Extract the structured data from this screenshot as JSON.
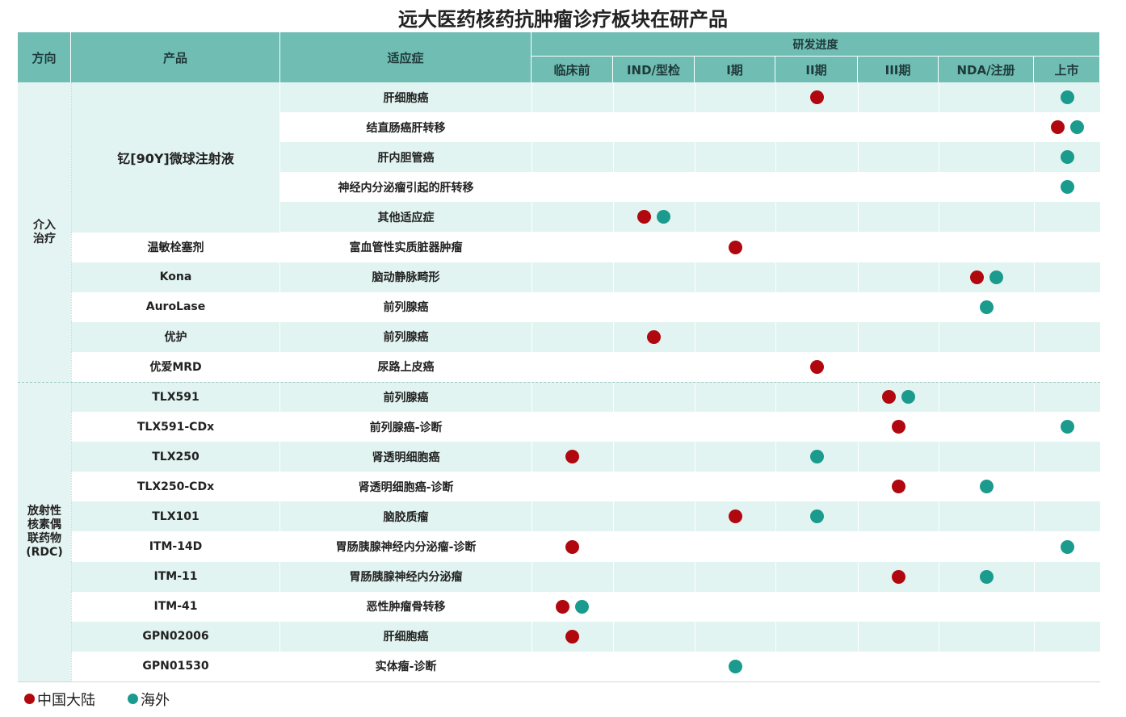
{
  "title": "远大医药核药抗肿瘤诊疗板块在研产品",
  "header": {
    "direction": "方向",
    "product": "产品",
    "indication": "适应症",
    "progress": "研发进度",
    "stages": [
      "临床前",
      "IND/型检",
      "I期",
      "II期",
      "III期",
      "NDA/注册",
      "上市"
    ]
  },
  "groups": [
    {
      "label": "介入\n治疗",
      "products": [
        {
          "name": "钇[90Y]微球注射液",
          "indications": [
            {
              "name": "肝细胞癌",
              "mainland": "II期",
              "overseas": "上市"
            },
            {
              "name": "结直肠癌肝转移",
              "mainland": "上市",
              "overseas": "上市"
            },
            {
              "name": "肝内胆管癌",
              "mainland": null,
              "overseas": "上市"
            },
            {
              "name": "神经内分泌瘤引起的肝转移",
              "mainland": null,
              "overseas": "上市"
            },
            {
              "name": "其他适应症",
              "mainland": "IND/型检",
              "overseas": "IND/型检"
            }
          ]
        },
        {
          "name": "温敏栓塞剂",
          "indications": [
            {
              "name": "富血管性实质脏器肿瘤",
              "mainland": "I期",
              "overseas": null
            }
          ]
        },
        {
          "name": "Kona",
          "indications": [
            {
              "name": "脑动静脉畸形",
              "mainland": "NDA/注册",
              "overseas": "NDA/注册"
            }
          ]
        },
        {
          "name": "AuroLase",
          "indications": [
            {
              "name": "前列腺癌",
              "mainland": null,
              "overseas": "NDA/注册"
            }
          ]
        },
        {
          "name": "优护",
          "indications": [
            {
              "name": "前列腺癌",
              "mainland": "IND/型检",
              "overseas": null
            }
          ]
        },
        {
          "name": "优爱MRD",
          "indications": [
            {
              "name": "尿路上皮癌",
              "mainland": "II期",
              "overseas": null
            }
          ]
        }
      ]
    },
    {
      "label": "放射性\n核素偶\n联药物\n(RDC)",
      "products": [
        {
          "name": "TLX591",
          "indications": [
            {
              "name": "前列腺癌",
              "mainland": "III期",
              "overseas": "III期"
            }
          ]
        },
        {
          "name": "TLX591-CDx",
          "indications": [
            {
              "name": "前列腺癌-诊断",
              "mainland": "III期",
              "overseas": "上市"
            }
          ]
        },
        {
          "name": "TLX250",
          "indications": [
            {
              "name": "肾透明细胞癌",
              "mainland": "临床前",
              "overseas": "II期"
            }
          ]
        },
        {
          "name": "TLX250-CDx",
          "indications": [
            {
              "name": "肾透明细胞癌-诊断",
              "mainland": "III期",
              "overseas": "NDA/注册"
            }
          ]
        },
        {
          "name": "TLX101",
          "indications": [
            {
              "name": "脑胶质瘤",
              "mainland": "I期",
              "overseas": "II期"
            }
          ]
        },
        {
          "name": "ITM-14D",
          "indications": [
            {
              "name": "胃肠胰腺神经内分泌瘤-诊断",
              "mainland": "临床前",
              "overseas": "上市"
            }
          ]
        },
        {
          "name": "ITM-11",
          "indications": [
            {
              "name": "胃肠胰腺神经内分泌瘤",
              "mainland": "III期",
              "overseas": "NDA/注册"
            }
          ]
        },
        {
          "name": "ITM-41",
          "indications": [
            {
              "name": "恶性肿瘤骨转移",
              "mainland": "临床前",
              "overseas": "临床前"
            }
          ]
        },
        {
          "name": "GPN02006",
          "indications": [
            {
              "name": "肝细胞癌",
              "mainland": "临床前",
              "overseas": null
            }
          ]
        },
        {
          "name": "GPN01530",
          "indications": [
            {
              "name": "实体瘤-诊断",
              "mainland": null,
              "overseas": "I期"
            }
          ]
        }
      ]
    }
  ],
  "legend": {
    "items": [
      "中国大陆",
      "海外"
    ],
    "colors": [
      "#b0080e",
      "#1b9a8e"
    ]
  }
}
